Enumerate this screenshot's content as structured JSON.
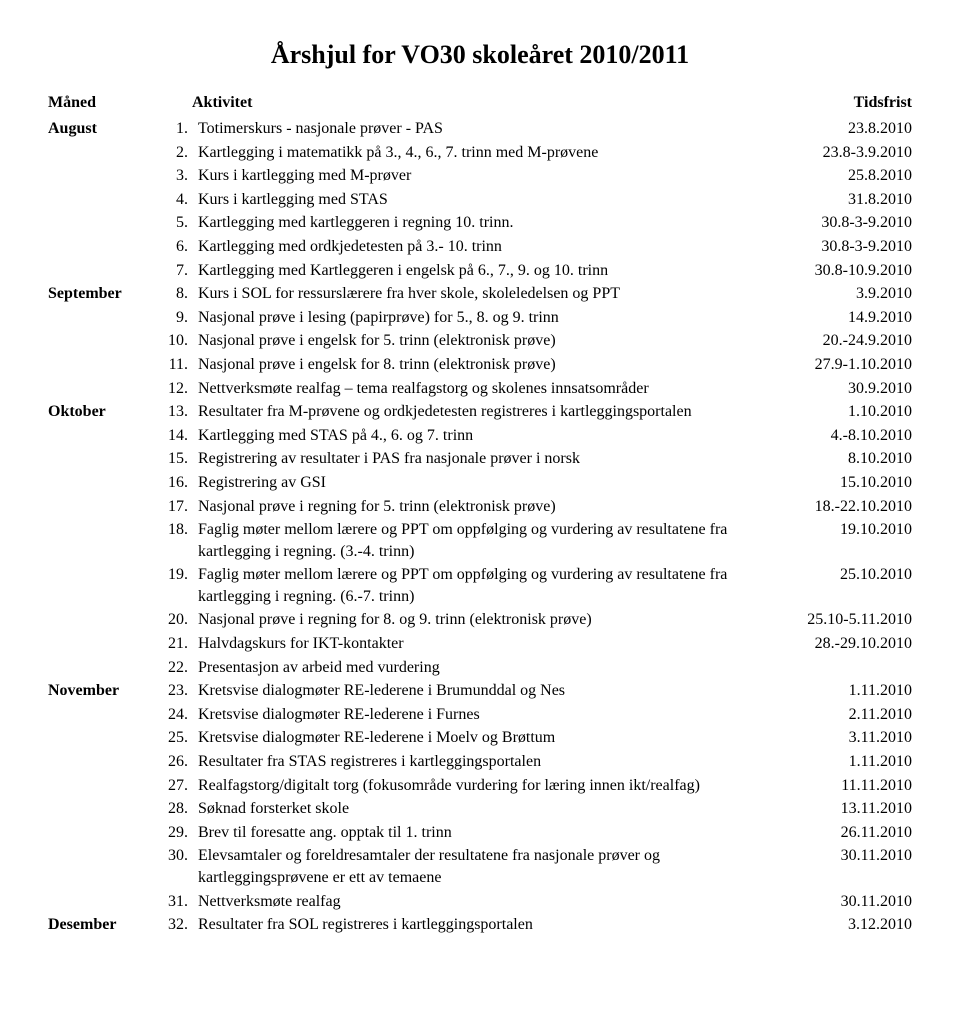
{
  "title": "Årshjul for VO30 skoleåret 2010/2011",
  "headers": {
    "month": "Måned",
    "activity": "Aktivitet",
    "deadline": "Tidsfrist"
  },
  "rows": [
    {
      "month": "August",
      "num": "1.",
      "activity": "Totimerskurs - nasjonale prøver - PAS",
      "deadline": "23.8.2010"
    },
    {
      "month": "",
      "num": "2.",
      "activity": "Kartlegging i matematikk på 3., 4., 6., 7. trinn med M-prøvene",
      "deadline": "23.8-3.9.2010"
    },
    {
      "month": "",
      "num": "3.",
      "activity": "Kurs i kartlegging med M-prøver",
      "deadline": "25.8.2010"
    },
    {
      "month": "",
      "num": "4.",
      "activity": "Kurs i kartlegging med STAS",
      "deadline": "31.8.2010"
    },
    {
      "month": "",
      "num": "5.",
      "activity": "Kartlegging med kartleggeren i regning 10. trinn.",
      "deadline": "30.8-3-9.2010"
    },
    {
      "month": "",
      "num": "6.",
      "activity": "Kartlegging med ordkjedetesten på 3.- 10. trinn",
      "deadline": "30.8-3-9.2010"
    },
    {
      "month": "",
      "num": "7.",
      "activity": "Kartlegging med Kartleggeren i engelsk på 6., 7., 9. og 10. trinn",
      "deadline": "30.8-10.9.2010"
    },
    {
      "month": "September",
      "num": "8.",
      "activity": "Kurs i SOL for ressurslærere fra hver skole, skoleledelsen og PPT",
      "deadline": "3.9.2010"
    },
    {
      "month": "",
      "num": "9.",
      "activity": "Nasjonal prøve i lesing (papirprøve) for 5., 8. og 9. trinn",
      "deadline": "14.9.2010"
    },
    {
      "month": "",
      "num": "10.",
      "activity": "Nasjonal prøve i engelsk for 5. trinn (elektronisk prøve)",
      "deadline": "20.-24.9.2010"
    },
    {
      "month": "",
      "num": "11.",
      "activity": "Nasjonal prøve i engelsk for 8. trinn (elektronisk prøve)",
      "deadline": "27.9-1.10.2010"
    },
    {
      "month": "",
      "num": "12.",
      "activity": "Nettverksmøte realfag – tema realfagstorg og skolenes innsatsområder",
      "deadline": "30.9.2010"
    },
    {
      "month": "Oktober",
      "num": "13.",
      "activity": "Resultater fra M-prøvene og ordkjedetesten registreres i kartleggingsportalen",
      "deadline": "1.10.2010"
    },
    {
      "month": "",
      "num": "14.",
      "activity": "Kartlegging med STAS på 4., 6. og 7. trinn",
      "deadline": "4.-8.10.2010"
    },
    {
      "month": "",
      "num": "15.",
      "activity": "Registrering av resultater i PAS fra nasjonale prøver i norsk",
      "deadline": "8.10.2010"
    },
    {
      "month": "",
      "num": "16.",
      "activity": "Registrering av GSI",
      "deadline": "15.10.2010"
    },
    {
      "month": "",
      "num": "17.",
      "activity": "Nasjonal prøve i regning for 5. trinn (elektronisk prøve)",
      "deadline": "18.-22.10.2010"
    },
    {
      "month": "",
      "num": "18.",
      "activity": "Faglig møter mellom lærere og PPT om oppfølging og vurdering av resultatene fra kartlegging i regning. (3.-4. trinn)",
      "deadline": "19.10.2010"
    },
    {
      "month": "",
      "num": "19.",
      "activity": "Faglig møter mellom lærere og PPT om oppfølging og vurdering av resultatene fra kartlegging i regning. (6.-7. trinn)",
      "deadline": "25.10.2010"
    },
    {
      "month": "",
      "num": "20.",
      "activity": "Nasjonal prøve i regning for 8. og 9. trinn (elektronisk prøve)",
      "deadline": "25.10-5.11.2010"
    },
    {
      "month": "",
      "num": "21.",
      "activity": "Halvdagskurs for IKT-kontakter",
      "deadline": "28.-29.10.2010"
    },
    {
      "month": "",
      "num": "22.",
      "activity": "Presentasjon av arbeid med vurdering",
      "deadline": ""
    },
    {
      "month": "November",
      "num": "23.",
      "activity": "Kretsvise dialogmøter RE-lederene i Brumunddal og Nes",
      "deadline": "1.11.2010"
    },
    {
      "month": "",
      "num": "24.",
      "activity": "Kretsvise dialogmøter RE-lederene i Furnes",
      "deadline": "2.11.2010"
    },
    {
      "month": "",
      "num": "25.",
      "activity": "Kretsvise dialogmøter RE-lederene i Moelv og Brøttum",
      "deadline": "3.11.2010"
    },
    {
      "month": "",
      "num": "26.",
      "activity": "Resultater fra STAS registreres i kartleggingsportalen",
      "deadline": "1.11.2010"
    },
    {
      "month": "",
      "num": "27.",
      "activity": "Realfagstorg/digitalt torg (fokusområde vurdering for læring innen ikt/realfag)",
      "deadline": "11.11.2010"
    },
    {
      "month": "",
      "num": "28.",
      "activity": "Søknad forsterket skole",
      "deadline": "13.11.2010"
    },
    {
      "month": "",
      "num": "29.",
      "activity": "Brev til foresatte ang. opptak til 1. trinn",
      "deadline": "26.11.2010"
    },
    {
      "month": "",
      "num": "30.",
      "activity": "Elevsamtaler og foreldresamtaler der resultatene fra nasjonale prøver og kartleggingsprøvene er ett av temaene",
      "deadline": "30.11.2010"
    },
    {
      "month": "",
      "num": "31.",
      "activity": "Nettverksmøte realfag",
      "deadline": "30.11.2010"
    },
    {
      "month": "Desember",
      "num": "32.",
      "activity": "Resultater fra SOL registreres i kartleggingsportalen",
      "deadline": "3.12.2010"
    }
  ]
}
